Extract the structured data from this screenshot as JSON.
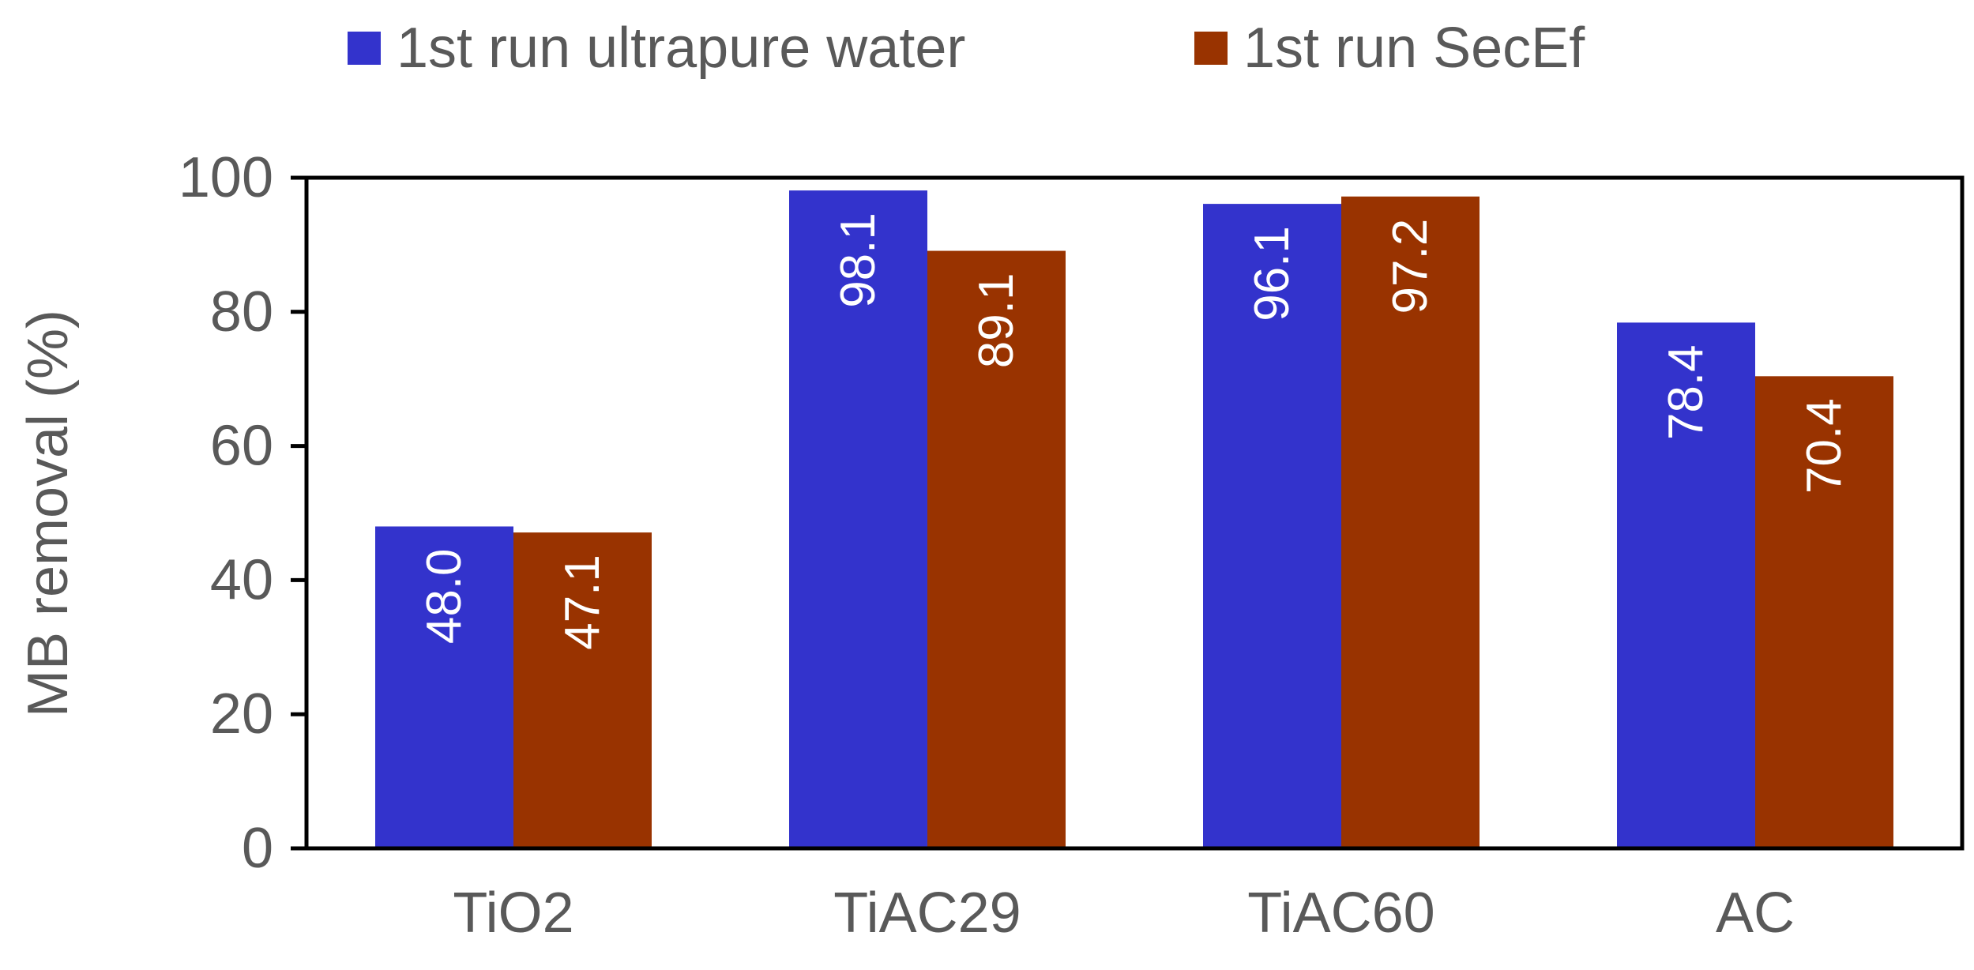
{
  "chart_data": {
    "type": "bar",
    "title": "",
    "xlabel": "",
    "ylabel": "MB removal (%)",
    "ylim": [
      0,
      100
    ],
    "yticks": [
      0,
      20,
      40,
      60,
      80,
      100
    ],
    "grid": false,
    "legend_position": "top",
    "categories": [
      "TiO2",
      "TiAC29",
      "TiAC60",
      "AC"
    ],
    "series": [
      {
        "name": "1st run ultrapure water",
        "color": "#3333cc",
        "values": [
          48.0,
          98.1,
          96.1,
          78.4
        ],
        "labels": [
          "48.0",
          "98.1",
          "96.1",
          "78.4"
        ]
      },
      {
        "name": "1st run SecEf",
        "color": "#993300",
        "values": [
          47.1,
          89.1,
          97.2,
          70.4
        ],
        "labels": [
          "47.1",
          "89.1",
          "97.2",
          "70.4"
        ]
      }
    ],
    "data_label_color": "#ffffff",
    "text_color": "#595959"
  }
}
